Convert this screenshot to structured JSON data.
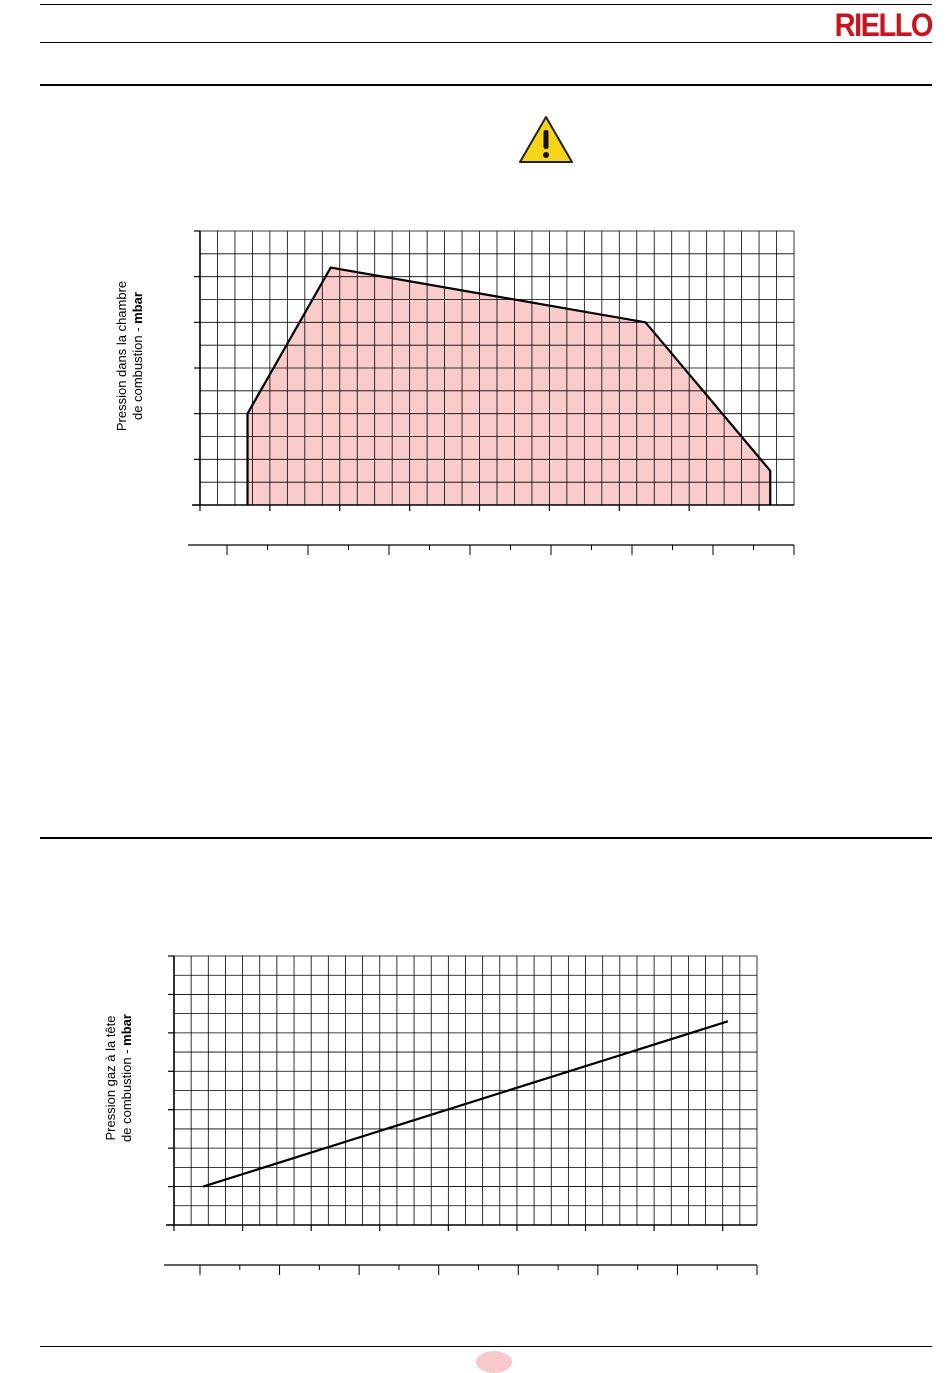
{
  "header": {
    "brand": "RIELLO",
    "brand_color": "#c8141e"
  },
  "warning": {
    "icon": "warning-triangle-icon",
    "color": "#f7d417"
  },
  "chart_data": [
    {
      "type": "area",
      "title": "",
      "ylabel_line1": "Pression dans la chambre",
      "ylabel_line2_plain": "de combustion - ",
      "ylabel_unit": "mbar",
      "fill_color": "#f9c8c8",
      "line_color": "#000000",
      "grid": true,
      "x": [
        0.08,
        0.08,
        0.22,
        0.75,
        0.96,
        0.96
      ],
      "y": [
        0,
        2,
        5.2,
        4,
        0.75,
        0
      ],
      "xlim": [
        0,
        1
      ],
      "ylim": [
        0,
        6
      ],
      "grid_cols": 34,
      "grid_rows": 12,
      "secondary_axis_ticks": 14
    },
    {
      "type": "line",
      "title": "",
      "ylabel_line1": "Pression gaz à la tête",
      "ylabel_line2_plain": "de combustion - ",
      "ylabel_unit": "mbar",
      "line_color": "#000000",
      "grid": true,
      "x": [
        0.05,
        0.95
      ],
      "y": [
        1,
        5.3
      ],
      "xlim": [
        0,
        1
      ],
      "ylim": [
        0,
        7
      ],
      "grid_cols": 34,
      "grid_rows": 14,
      "secondary_axis_ticks": 14
    }
  ],
  "page_indicator_color": "#f7c9cc"
}
